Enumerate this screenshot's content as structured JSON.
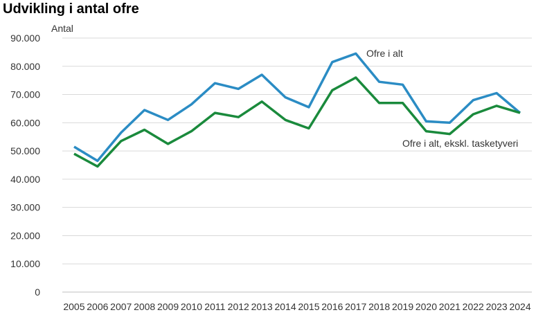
{
  "chart_data": {
    "type": "line",
    "title": "Udvikling i antal ofre",
    "ylabel": "Antal",
    "xlabel": "",
    "x": [
      "2005",
      "2006",
      "2007",
      "2008",
      "2009",
      "2010",
      "2011",
      "2012",
      "2013",
      "2014",
      "2015",
      "2016",
      "2017",
      "2018",
      "2019",
      "2020",
      "2021",
      "2022",
      "2023",
      "2024"
    ],
    "ylim": [
      0,
      90000
    ],
    "y_ticks": [
      "0",
      "10.000",
      "20.000",
      "30.000",
      "40.000",
      "50.000",
      "60.000",
      "70.000",
      "80.000",
      "90.000"
    ],
    "y_tick_values": [
      0,
      10000,
      20000,
      30000,
      40000,
      50000,
      60000,
      70000,
      80000,
      90000
    ],
    "grid": true,
    "series": [
      {
        "name": "Ofre i alt",
        "color": "#2b8cc4",
        "values": [
          51500,
          46500,
          56500,
          64500,
          61000,
          66500,
          74000,
          72000,
          77000,
          69000,
          65500,
          81500,
          84500,
          74500,
          73500,
          60500,
          60000,
          68000,
          70500,
          63500
        ]
      },
      {
        "name": "Ofre i alt, ekskl. tasketyveri",
        "color": "#1a8a3c",
        "values": [
          49000,
          44500,
          53500,
          57500,
          52500,
          57000,
          63500,
          62000,
          67500,
          61000,
          58000,
          71500,
          76000,
          67000,
          67000,
          57000,
          56000,
          63000,
          66000,
          63500
        ]
      }
    ]
  }
}
